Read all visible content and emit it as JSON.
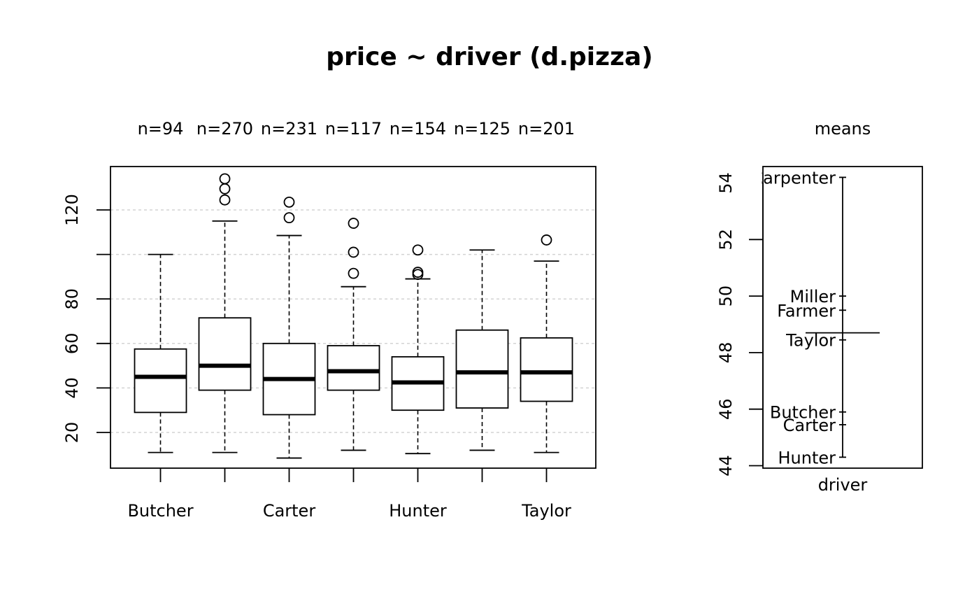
{
  "title": "price ~ driver (d.pizza)",
  "chart_data": [
    {
      "type": "box",
      "categories": [
        "Butcher",
        "Carpenter",
        "Carter",
        "Farmer",
        "Hunter",
        "Miller",
        "Taylor"
      ],
      "x_tick_labels_shown": [
        "Butcher",
        "Carter",
        "Hunter",
        "Taylor"
      ],
      "counts_label": [
        "n=94",
        "n=270",
        "n=231",
        "n=117",
        "n=154",
        "n=125",
        "n=201"
      ],
      "boxes": [
        {
          "whisker_low": 11,
          "q1": 29,
          "median": 45,
          "q3": 57.5,
          "whisker_high": 100,
          "outliers": []
        },
        {
          "whisker_low": 11,
          "q1": 39,
          "median": 50,
          "q3": 71.5,
          "whisker_high": 115,
          "outliers": [
            124.5,
            129.5,
            134
          ]
        },
        {
          "whisker_low": 8.5,
          "q1": 28,
          "median": 44,
          "q3": 60,
          "whisker_high": 108.5,
          "outliers": [
            116.5,
            123.5
          ]
        },
        {
          "whisker_low": 12,
          "q1": 39,
          "median": 47.5,
          "q3": 59,
          "whisker_high": 85.5,
          "outliers": [
            91.5,
            101,
            114
          ]
        },
        {
          "whisker_low": 10.5,
          "q1": 30,
          "median": 42.5,
          "q3": 54,
          "whisker_high": 89,
          "outliers": [
            91,
            92,
            102
          ]
        },
        {
          "whisker_low": 12,
          "q1": 31,
          "median": 47,
          "q3": 66,
          "whisker_high": 102,
          "outliers": []
        },
        {
          "whisker_low": 11,
          "q1": 34,
          "median": 47,
          "q3": 62.5,
          "whisker_high": 97,
          "outliers": [
            106.5
          ]
        }
      ],
      "y_ticks": [
        20,
        40,
        60,
        80,
        100,
        120
      ],
      "y_tick_labels": [
        "20",
        "40",
        "60",
        "80",
        "",
        "120"
      ],
      "ylim": [
        4,
        140
      ],
      "grid": true
    },
    {
      "type": "means",
      "title": "means",
      "xlabel": "driver",
      "y_ticks": [
        44,
        46,
        48,
        50,
        52,
        54
      ],
      "y_tick_labels": [
        "44",
        "46",
        "48",
        "50",
        "52",
        "54"
      ],
      "ylim": [
        44,
        54.6
      ],
      "overall_mean": 48.7,
      "points": [
        {
          "label": "Carpenter",
          "value": 54.2
        },
        {
          "label": "Miller",
          "value": 50.0
        },
        {
          "label": "Farmer",
          "value": 49.5
        },
        {
          "label": "Taylor",
          "value": 48.45
        },
        {
          "label": "Butcher",
          "value": 45.9
        },
        {
          "label": "Carter",
          "value": 45.45
        },
        {
          "label": "Hunter",
          "value": 44.3
        }
      ]
    }
  ]
}
